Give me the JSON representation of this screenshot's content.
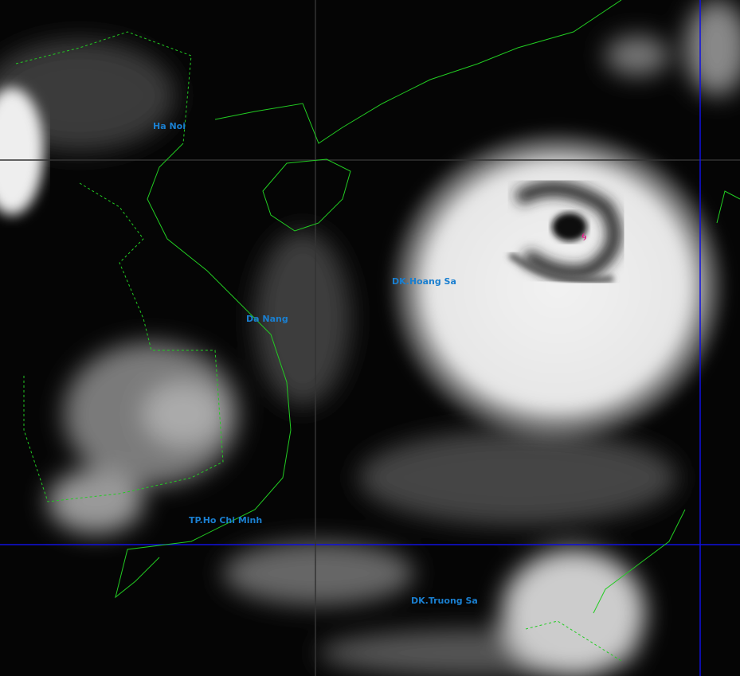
{
  "map": {
    "labels": {
      "ha_noi": "Ha Noi",
      "da_nang": "Da Nang",
      "hoang_sa": "DK.Hoang Sa",
      "hcm": "TP.Ho Chi Minh",
      "truong_sa": "DK.Truong Sa"
    },
    "storm_symbol": "typhoon-icon",
    "colors": {
      "coastline": "#22cc22",
      "grid": "#1010e0",
      "label": "#1a7fd0",
      "storm_marker": "#e0208a"
    }
  }
}
